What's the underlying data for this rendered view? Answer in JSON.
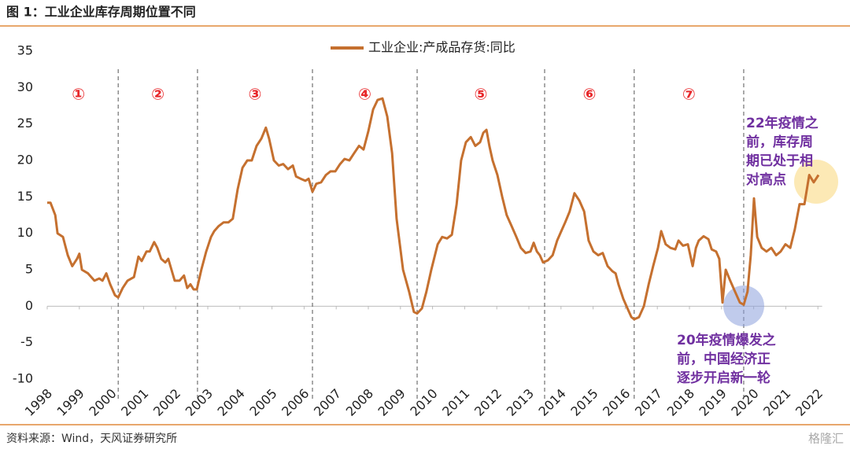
{
  "chart_data": {
    "type": "line",
    "title": "图 1：工业企业库存周期位置不同",
    "source": "资料来源：Wind，天风证券研究所",
    "watermark": "格隆汇",
    "xlim": [
      1998,
      2022.5
    ],
    "xticks": [
      1998,
      1999,
      2000,
      2001,
      2002,
      2003,
      2004,
      2005,
      2006,
      2007,
      2008,
      2009,
      2010,
      2011,
      2012,
      2013,
      2014,
      2015,
      2016,
      2017,
      2018,
      2019,
      2020,
      2021,
      2022
    ],
    "ylim": [
      -10,
      35
    ],
    "yticks": [
      -10,
      -5,
      0,
      5,
      10,
      15,
      20,
      25,
      30,
      35
    ],
    "cycle_boundaries": [
      2000.21,
      2002.68,
      2006.26,
      2009.52,
      2013.49,
      2016.28,
      2019.69
    ],
    "cycle_labels": [
      "①",
      "②",
      "③",
      "④",
      "⑤",
      "⑥",
      "⑦"
    ],
    "annotations": [
      {
        "lines": [
          "22年疫情之",
          "前，库存周",
          "期已处于相",
          "对高点"
        ]
      },
      {
        "lines": [
          "20年疫情爆发之",
          "前，中国经济正",
          "逐步开启新一轮"
        ]
      }
    ],
    "series": [
      {
        "name": "工业企业:产成品存货:同比",
        "color": "#c5702f",
        "x": [
          1998.0,
          1998.1,
          1998.25,
          1998.32,
          1998.49,
          1998.64,
          1998.78,
          1998.93,
          1999.0,
          1999.08,
          1999.27,
          1999.47,
          1999.62,
          1999.72,
          1999.84,
          1999.96,
          2000.11,
          2000.21,
          2000.35,
          2000.5,
          2000.7,
          2000.84,
          2000.94,
          2001.09,
          2001.19,
          2001.33,
          2001.43,
          2001.55,
          2001.68,
          2001.77,
          2001.87,
          2001.97,
          2002.12,
          2002.26,
          2002.36,
          2002.46,
          2002.56,
          2002.66,
          2002.8,
          2002.95,
          2003.1,
          2003.2,
          2003.34,
          2003.49,
          2003.64,
          2003.78,
          2003.93,
          2004.08,
          2004.23,
          2004.37,
          2004.52,
          2004.67,
          2004.81,
          2004.91,
          2005.06,
          2005.21,
          2005.35,
          2005.5,
          2005.65,
          2005.75,
          2005.89,
          2006.04,
          2006.14,
          2006.26,
          2006.38,
          2006.53,
          2006.68,
          2006.82,
          2006.97,
          2007.12,
          2007.26,
          2007.41,
          2007.56,
          2007.71,
          2007.85,
          2008.0,
          2008.15,
          2008.29,
          2008.44,
          2008.59,
          2008.74,
          2008.88,
          2009.08,
          2009.27,
          2009.42,
          2009.52,
          2009.67,
          2009.81,
          2009.96,
          2010.16,
          2010.3,
          2010.45,
          2010.6,
          2010.75,
          2010.89,
          2011.04,
          2011.19,
          2011.33,
          2011.48,
          2011.58,
          2011.68,
          2011.77,
          2011.87,
          2012.02,
          2012.17,
          2012.31,
          2012.46,
          2012.61,
          2012.75,
          2012.9,
          2013.05,
          2013.15,
          2013.25,
          2013.34,
          2013.44,
          2013.59,
          2013.74,
          2013.88,
          2014.03,
          2014.13,
          2014.27,
          2014.42,
          2014.57,
          2014.72,
          2014.86,
          2015.01,
          2015.16,
          2015.3,
          2015.45,
          2015.6,
          2015.7,
          2015.79,
          2015.94,
          2016.09,
          2016.19,
          2016.28,
          2016.43,
          2016.58,
          2016.73,
          2016.87,
          2017.02,
          2017.12,
          2017.26,
          2017.41,
          2017.56,
          2017.66,
          2017.8,
          2017.95,
          2018.1,
          2018.2,
          2018.29,
          2018.44,
          2018.59,
          2018.69,
          2018.83,
          2018.93,
          2019.03,
          2019.13,
          2019.27,
          2019.42,
          2019.57,
          2019.69,
          2019.81,
          2019.91,
          2020.01,
          2020.11,
          2020.25,
          2020.4,
          2020.55,
          2020.7,
          2020.84,
          2020.99,
          2021.14,
          2021.28,
          2021.43,
          2021.58,
          2021.73,
          2021.87,
          2022.02
        ],
        "values": [
          14.2,
          14.2,
          12.5,
          10,
          9.5,
          7,
          5.5,
          6.5,
          7.2,
          5,
          4.5,
          3.5,
          3.8,
          3.5,
          4.5,
          3,
          1.5,
          1.2,
          2.5,
          3.5,
          4,
          6.8,
          6.2,
          7.5,
          7.5,
          8.8,
          8,
          6.5,
          6,
          6.5,
          5,
          3.5,
          3.5,
          4.2,
          2.5,
          3,
          2.3,
          2.3,
          5,
          7.5,
          9.5,
          10.3,
          11,
          11.5,
          11.5,
          12,
          16,
          19,
          20,
          20,
          22,
          23,
          24.5,
          23,
          20,
          19.3,
          19.5,
          18.8,
          19.3,
          17.8,
          17.5,
          17.2,
          17.5,
          15.7,
          16.8,
          17,
          18,
          18.5,
          18.5,
          19.5,
          20.2,
          20,
          21,
          22,
          21.5,
          24,
          27,
          28.3,
          28.5,
          26,
          21,
          12,
          5,
          2,
          -0.8,
          -1,
          -0.3,
          2,
          5,
          8.5,
          9.5,
          9.3,
          9.8,
          14,
          20,
          22.5,
          23.2,
          22,
          22.5,
          23.8,
          24.2,
          22,
          20,
          18,
          15,
          12.5,
          11,
          9.5,
          8,
          7.3,
          7.5,
          8.7,
          7.5,
          7,
          6,
          6.3,
          7,
          9,
          10.5,
          11.5,
          13,
          15.5,
          14.5,
          13,
          9,
          7.5,
          7,
          7.3,
          5.5,
          4.8,
          4.5,
          3,
          1,
          -0.5,
          -1.5,
          -1.8,
          -1.5,
          0,
          3,
          5.5,
          8,
          10.3,
          8.5,
          8,
          7.8,
          9,
          8.3,
          8.5,
          5.5,
          8,
          9,
          9.6,
          9.2,
          7.8,
          7.5,
          6.5,
          0.5,
          5,
          3.5,
          2,
          0.5,
          0.2,
          2,
          7,
          14.8,
          9.5,
          8,
          7.5,
          8,
          7,
          7.5,
          8.5,
          8,
          10.5,
          14,
          14,
          18,
          17,
          18
        ]
      }
    ]
  }
}
